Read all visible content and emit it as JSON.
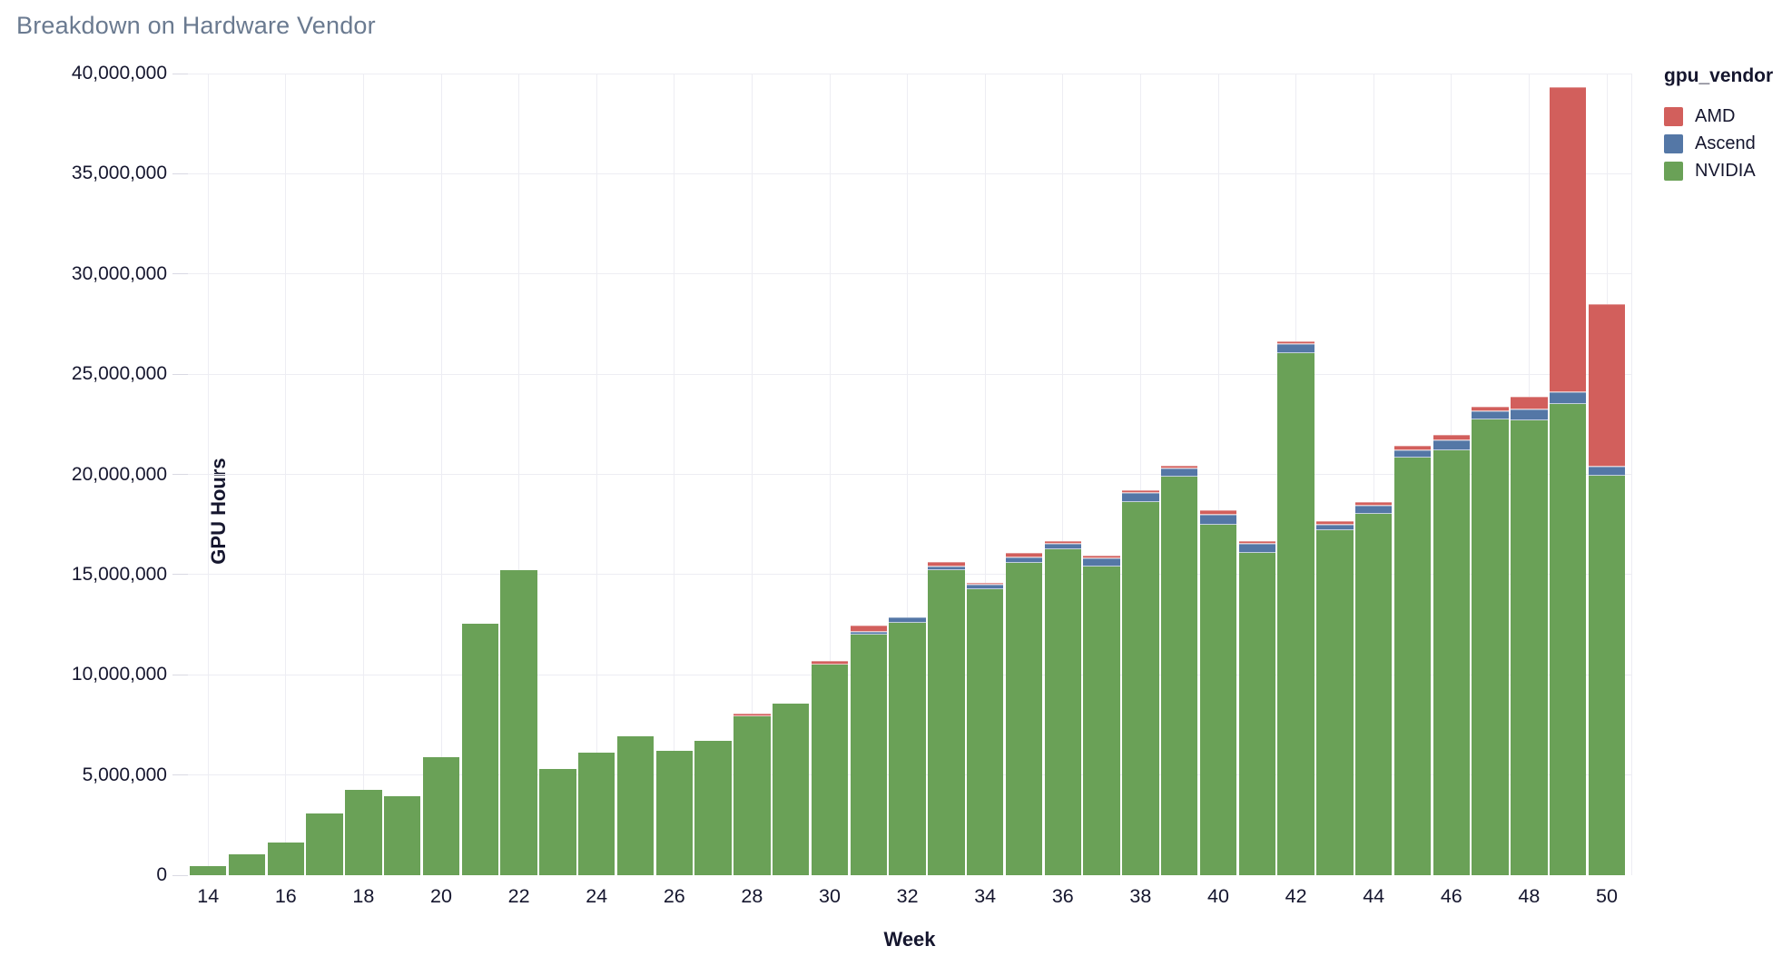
{
  "chart_data": {
    "type": "bar",
    "stacked": true,
    "title": "Breakdown on Hardware Vendor",
    "xlabel": "Week",
    "ylabel": "GPU Hours",
    "legend_title": "gpu_vendor",
    "legend_position": "top-right",
    "grid": true,
    "ylim": [
      0,
      40000000
    ],
    "y_ticks": [
      "0",
      "5,000,000",
      "10,000,000",
      "15,000,000",
      "20,000,000",
      "25,000,000",
      "30,000,000",
      "35,000,000",
      "40,000,000"
    ],
    "x_ticks": [
      14,
      16,
      18,
      20,
      22,
      24,
      26,
      28,
      30,
      32,
      34,
      36,
      38,
      40,
      42,
      44,
      46,
      48,
      50
    ],
    "x": [
      14,
      15,
      16,
      17,
      18,
      19,
      20,
      21,
      22,
      23,
      24,
      25,
      26,
      27,
      28,
      29,
      30,
      31,
      32,
      33,
      34,
      35,
      36,
      37,
      38,
      39,
      40,
      41,
      42,
      43,
      44,
      45,
      46,
      47,
      48,
      49,
      50
    ],
    "series": [
      {
        "name": "AMD",
        "color": "#d25f5c",
        "values": [
          0,
          0,
          0,
          0,
          0,
          0,
          0,
          0,
          0,
          0,
          0,
          0,
          0,
          0,
          100000,
          0,
          200000,
          300000,
          0,
          250000,
          100000,
          250000,
          100000,
          150000,
          150000,
          150000,
          200000,
          100000,
          150000,
          180000,
          150000,
          200000,
          230000,
          230000,
          600000,
          15200000,
          8100000
        ]
      },
      {
        "name": "Ascend",
        "color": "#5477a6",
        "values": [
          0,
          0,
          0,
          0,
          0,
          0,
          0,
          0,
          0,
          0,
          0,
          0,
          0,
          0,
          0,
          0,
          0,
          150000,
          250000,
          200000,
          250000,
          250000,
          300000,
          400000,
          450000,
          400000,
          500000,
          450000,
          450000,
          270000,
          400000,
          370000,
          520000,
          380000,
          560000,
          600000,
          450000
        ]
      },
      {
        "name": "NVIDIA",
        "color": "#6aa157",
        "values": [
          450000,
          1050000,
          1650000,
          3100000,
          4250000,
          3950000,
          5900000,
          12550000,
          15200000,
          5300000,
          6100000,
          6950000,
          6200000,
          6700000,
          7950000,
          8550000,
          10500000,
          12000000,
          12600000,
          15200000,
          14250000,
          15600000,
          16250000,
          15400000,
          18600000,
          19900000,
          17500000,
          16100000,
          26050000,
          17200000,
          18050000,
          20850000,
          21200000,
          22750000,
          22700000,
          23500000,
          19950000
        ]
      }
    ]
  }
}
